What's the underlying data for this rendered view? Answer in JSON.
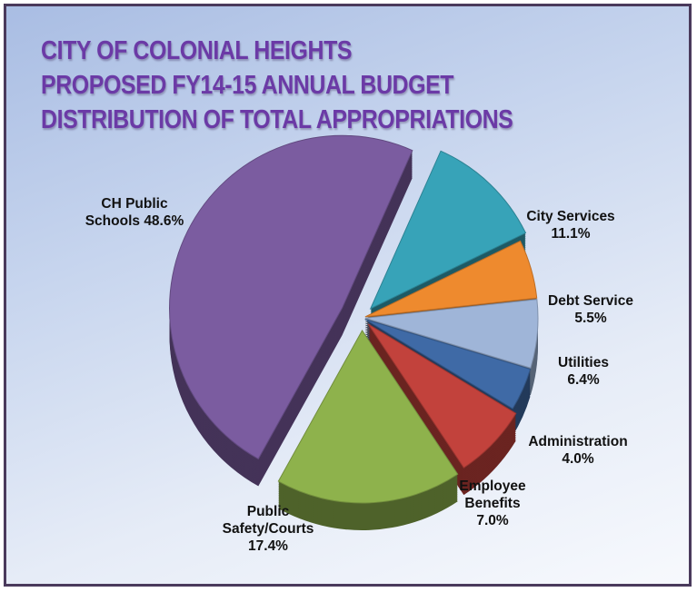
{
  "title_lines": [
    "CITY OF COLONIAL HEIGHTS",
    "PROPOSED FY14-15 ANNUAL BUDGET",
    "DISTRIBUTION OF TOTAL APPROPRIATIONS"
  ],
  "chart_data": {
    "type": "pie",
    "style": "3d-exploded",
    "title": "CITY OF COLONIAL HEIGHTS PROPOSED FY14-15 ANNUAL BUDGET DISTRIBUTION OF TOTAL APPROPRIATIONS",
    "slices": [
      {
        "label_lines": [
          "City Services",
          "11.1%"
        ],
        "value": 11.1,
        "color": "#37a3b8"
      },
      {
        "label_lines": [
          "Debt Service",
          "5.5%"
        ],
        "value": 5.5,
        "color": "#ee8a2e"
      },
      {
        "label_lines": [
          "Utilities",
          "6.4%"
        ],
        "value": 6.4,
        "color": "#9fb5d8"
      },
      {
        "label_lines": [
          "Administration",
          "4.0%"
        ],
        "value": 4.0,
        "color": "#3f6aa6"
      },
      {
        "label_lines": [
          "Employee",
          "Benefits",
          "7.0%"
        ],
        "value": 7.0,
        "color": "#c2423c"
      },
      {
        "label_lines": [
          "Public",
          "Safety/Courts",
          "17.4%"
        ],
        "value": 17.4,
        "color": "#8eb24c"
      },
      {
        "label_lines": [
          "CH Public",
          "Schools 48.6%"
        ],
        "value": 48.6,
        "color": "#7b5ca0"
      }
    ]
  }
}
